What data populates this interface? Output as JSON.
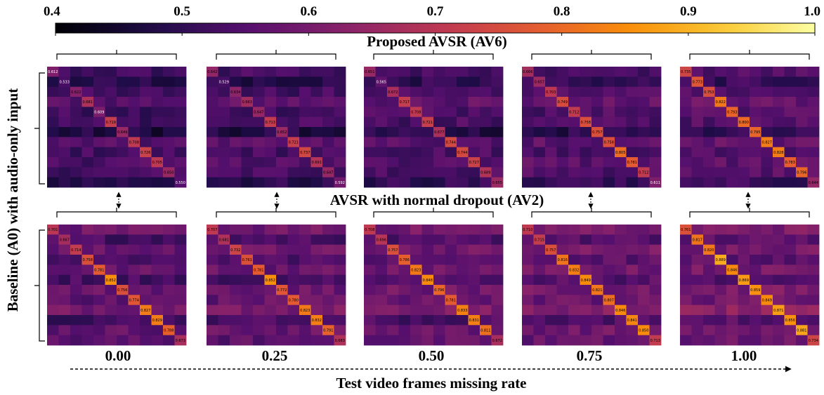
{
  "chart_data": {
    "type": "heatmap",
    "colormap": "inferno",
    "colorbar": {
      "min": 0.4,
      "max": 1.0,
      "ticks": [
        "0.4",
        "0.5",
        "0.6",
        "0.7",
        "0.8",
        "0.9",
        "1.0"
      ],
      "placement": "top"
    },
    "row_groups": [
      {
        "title": "Proposed AVSR (AV6)",
        "diagonals": [
          [
            0.612,
            0.533,
            0.622,
            0.681,
            0.609,
            0.719,
            0.649,
            0.708,
            0.726,
            0.705,
            0.65,
            0.55
          ],
          [
            0.642,
            0.529,
            0.634,
            0.663,
            0.647,
            0.713,
            0.652,
            0.721,
            0.737,
            0.691,
            0.647,
            0.592
          ],
          [
            0.651,
            0.565,
            0.672,
            0.717,
            0.708,
            0.721,
            0.677,
            0.744,
            0.744,
            0.727,
            0.689,
            0.655
          ],
          [
            0.666,
            0.657,
            0.703,
            0.749,
            0.712,
            0.758,
            0.757,
            0.758,
            0.805,
            0.781,
            0.712,
            0.611
          ],
          [
            0.735,
            0.773,
            0.753,
            0.822,
            0.793,
            0.8,
            0.795,
            0.827,
            0.828,
            0.783,
            0.796,
            0.644
          ]
        ]
      },
      {
        "title": "AVSR with normal dropout (AV2)",
        "diagonals": [
          [
            0.701,
            0.667,
            0.714,
            0.758,
            0.781,
            0.852,
            0.756,
            0.774,
            0.827,
            0.829,
            0.788,
            0.673
          ],
          [
            0.707,
            0.681,
            0.732,
            0.761,
            0.781,
            0.852,
            0.772,
            0.78,
            0.823,
            0.832,
            0.791,
            0.683
          ],
          [
            0.708,
            0.696,
            0.757,
            0.786,
            0.823,
            0.848,
            0.796,
            0.781,
            0.833,
            0.831,
            0.811,
            0.672
          ],
          [
            0.71,
            0.715,
            0.757,
            0.816,
            0.832,
            0.849,
            0.821,
            0.807,
            0.846,
            0.841,
            0.85,
            0.713
          ],
          [
            0.761,
            0.817,
            0.82,
            0.889,
            0.846,
            0.869,
            0.859,
            0.849,
            0.871,
            0.856,
            0.881,
            0.734
          ]
        ]
      }
    ],
    "ylabel": "Baseline (A0) with audio-only input",
    "xlabel": "Test video frames missing rate",
    "missing_rates": [
      "0.00",
      "0.25",
      "0.50",
      "0.75",
      "1.00"
    ],
    "colors": {
      "arrow": "#000000",
      "text": "#000000"
    }
  }
}
